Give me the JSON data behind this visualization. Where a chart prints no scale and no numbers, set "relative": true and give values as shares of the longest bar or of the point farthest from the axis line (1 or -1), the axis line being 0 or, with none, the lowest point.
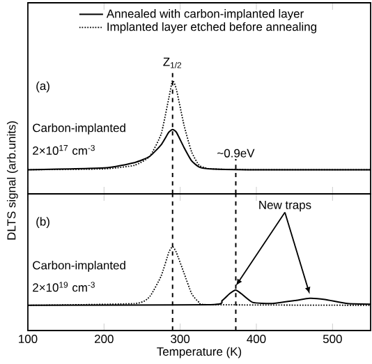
{
  "chart_data": [
    {
      "type": "line",
      "relative": true,
      "xlim": [
        100,
        550
      ],
      "xticks": [
        100,
        200,
        300,
        400,
        500
      ],
      "tick_labels": false,
      "legend": "top",
      "marker": "none",
      "grid": false,
      "ylabel": "DLTS signal (arb.units)",
      "annotations": [
        "(a)",
        "Carbon-implanted",
        "2×10$^{17}$ cm$^{-3}$"
      ],
      "ref_lines": [
        {
          "axis": "x",
          "value": 290,
          "label": "Z$_{1/2}$",
          "line_style": "dashed"
        },
        {
          "axis": "x",
          "value": 373,
          "label": "~0.9eV",
          "line_style": "dashed"
        }
      ],
      "series": [
        {
          "name": "Annealed with carbon-implanted layer",
          "color": "#000000",
          "line_style": "solid",
          "x": [
            100,
            200,
            240,
            260,
            275,
            285,
            290,
            295,
            305,
            315,
            325,
            340,
            400,
            550
          ],
          "values": [
            0,
            0.02,
            0.08,
            0.15,
            0.28,
            0.42,
            0.45,
            0.42,
            0.25,
            0.1,
            0.03,
            0.01,
            0,
            0
          ]
        },
        {
          "name": "Implanted layer etched before annealing",
          "color": "#000000",
          "line_style": "dotted",
          "x": [
            100,
            200,
            240,
            260,
            275,
            285,
            290,
            295,
            305,
            315,
            325,
            340,
            400,
            550
          ],
          "values": [
            0,
            0.01,
            0.05,
            0.15,
            0.4,
            0.8,
            1.0,
            0.9,
            0.5,
            0.2,
            0.05,
            0.01,
            0,
            0
          ]
        }
      ]
    },
    {
      "type": "line",
      "relative": true,
      "xlim": [
        100,
        550
      ],
      "xticks": [
        100,
        200,
        300,
        400,
        500
      ],
      "tick_labels": "x",
      "marker": "none",
      "grid": false,
      "xlabel": "Temperature (K)",
      "annotations": [
        "(b)",
        "Carbon-implanted",
        "2×10$^{19}$ cm$^{-3}$",
        "New traps"
      ],
      "ref_lines": [
        {
          "axis": "x",
          "value": 290,
          "line_style": "dashed"
        },
        {
          "axis": "x",
          "value": 373,
          "line_style": "dashed"
        }
      ],
      "series": [
        {
          "color": "#000000",
          "line_style": "solid",
          "x": [
            100,
            340,
            355,
            365,
            373,
            380,
            395,
            420,
            450,
            470,
            490,
            520,
            550
          ],
          "values": [
            0,
            0.01,
            0.08,
            0.2,
            0.26,
            0.2,
            0.05,
            0.03,
            0.08,
            0.12,
            0.1,
            0.03,
            0.02
          ]
        },
        {
          "color": "#000000",
          "line_style": "dotted",
          "x": [
            100,
            240,
            260,
            275,
            285,
            290,
            295,
            305,
            315,
            325,
            340,
            550
          ],
          "values": [
            0,
            0.03,
            0.15,
            0.5,
            0.9,
            1.0,
            0.9,
            0.55,
            0.2,
            0.05,
            0.01,
            0
          ]
        }
      ]
    }
  ]
}
